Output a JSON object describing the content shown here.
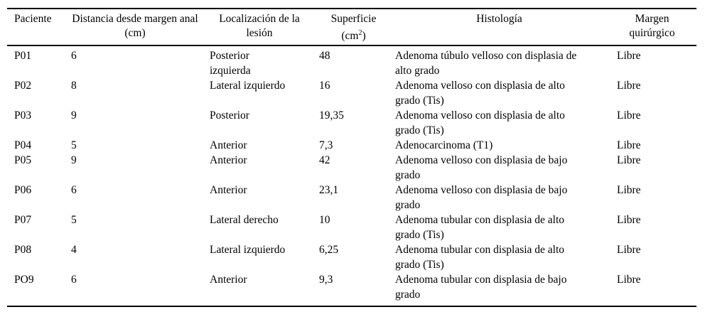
{
  "colors": {
    "text": "#000000",
    "background": "#ffffff",
    "rule": "#000000"
  },
  "table": {
    "header": {
      "paciente": "Paciente",
      "distancia": "Distancia desde margen anal\n(cm)",
      "localizacion": "Localización de la\nlesión",
      "superficie_line1": "Superficie",
      "superficie_unit_prefix": "(cm",
      "superficie_unit_sup": "2",
      "superficie_unit_suffix": ")",
      "histologia": "Histología",
      "margen": "Margen\nquirúrgico"
    },
    "rows": [
      {
        "paciente": "P01",
        "distancia": "6",
        "localizacion": "Posterior\nizquierda",
        "superficie": "48",
        "histologia": "Adenoma túbulo velloso con displasia de\nalto grado",
        "margen": "Libre"
      },
      {
        "paciente": "P02",
        "distancia": "8",
        "localizacion": "Lateral izquierdo",
        "superficie": "16",
        "histologia": "Adenoma velloso con displasia de alto\ngrado (Tis)",
        "margen": "Libre"
      },
      {
        "paciente": "P03",
        "distancia": "9",
        "localizacion": "Posterior",
        "superficie": "19,35",
        "histologia": "Adenoma velloso con displasia de alto\ngrado (Tis)",
        "margen": "Libre"
      },
      {
        "paciente": "P04",
        "distancia": "5",
        "localizacion": "Anterior",
        "superficie": "7,3",
        "histologia": "Adenocarcinoma (T1)",
        "margen": "Libre"
      },
      {
        "paciente": "P05",
        "distancia": "9",
        "localizacion": "Anterior",
        "superficie": "42",
        "histologia": "Adenoma velloso con displasia de bajo\ngrado",
        "margen": "Libre"
      },
      {
        "paciente": "P06",
        "distancia": "6",
        "localizacion": "Anterior",
        "superficie": "23,1",
        "histologia": "Adenoma velloso con displasia de bajo\ngrado",
        "margen": "Libre"
      },
      {
        "paciente": "P07",
        "distancia": "5",
        "localizacion": "Lateral derecho",
        "superficie": "10",
        "histologia": "Adenoma tubular con displasia de alto\ngrado (Tis)",
        "margen": "Libre"
      },
      {
        "paciente": "P08",
        "distancia": "4",
        "localizacion": "Lateral izquierdo",
        "superficie": "6,25",
        "histologia": "Adenoma tubular con displasia de alto\ngrado (Tis)",
        "margen": "Libre"
      },
      {
        "paciente": "PO9",
        "distancia": "6",
        "localizacion": "Anterior",
        "superficie": "9,3",
        "histologia": "Adenoma tubular con displasia de bajo\ngrado",
        "margen": "Libre"
      }
    ]
  }
}
